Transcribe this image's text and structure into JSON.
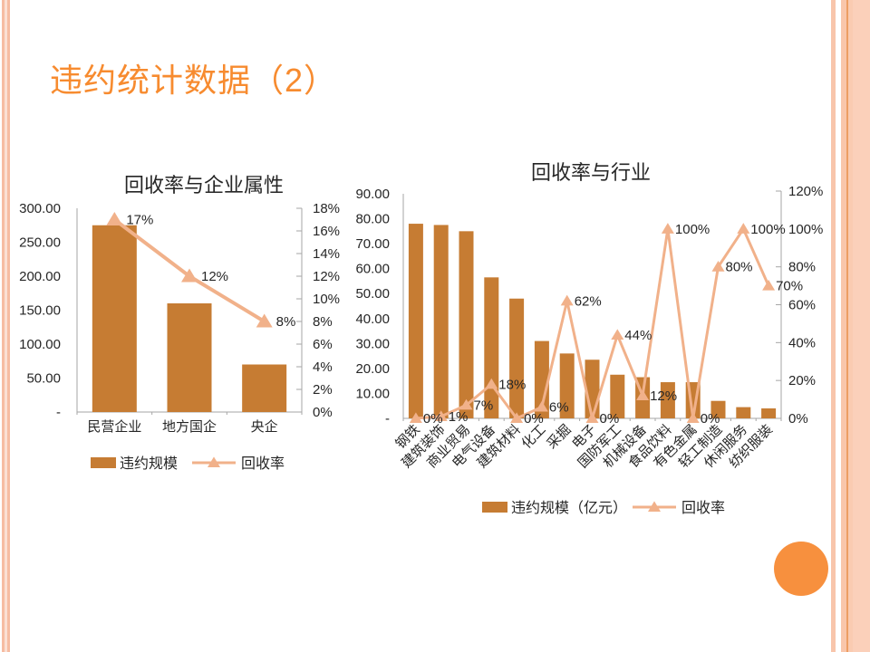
{
  "slide": {
    "title": "违约统计数据（2）",
    "colors": {
      "title_accent": "#F78B2F",
      "bar": "#C67C33",
      "line": "#F1B18A",
      "circle": "#F7903E",
      "border_stripe": "#F8C5AB",
      "border_stripe_dark": "#ED9E63",
      "axis": "#A6A6A6",
      "chart_text": "#262626"
    }
  },
  "chart_data": [
    {
      "type": "bar",
      "subtype": "combo-bar-line-dual-axis",
      "title": "回收率与企业属性",
      "categories": [
        "民营企业",
        "地方国企",
        "央企"
      ],
      "series": [
        {
          "name": "违约规模",
          "type": "bar",
          "axis": "left",
          "values": [
            275,
            160,
            70
          ],
          "color": "#C67C33"
        },
        {
          "name": "回收率",
          "type": "line",
          "axis": "right",
          "values": [
            17,
            12,
            8
          ],
          "labels": [
            "17%",
            "12%",
            "8%"
          ],
          "color": "#F1B18A"
        }
      ],
      "left_axis": {
        "max": 300,
        "min": 0,
        "step": 50,
        "tick_labels": [
          "300.00",
          "250.00",
          "200.00",
          "150.00",
          "100.00",
          "50.00",
          "-"
        ]
      },
      "right_axis": {
        "max": 18,
        "min": 0,
        "step": 2,
        "tick_labels": [
          "18%",
          "16%",
          "14%",
          "12%",
          "10%",
          "8%",
          "6%",
          "4%",
          "2%",
          "0%"
        ]
      },
      "legend": [
        "违约规模",
        "回收率"
      ],
      "legend_position": "bottom",
      "grid": false
    },
    {
      "type": "bar",
      "subtype": "combo-bar-line-dual-axis",
      "title": "回收率与行业",
      "categories": [
        "钢铁",
        "建筑装饰",
        "商业贸易",
        "电气设备",
        "建筑材料",
        "化工",
        "采掘",
        "电子",
        "国防军工",
        "机械设备",
        "食品饮料",
        "有色金属",
        "轻工制造",
        "休闲服务",
        "纺织服装"
      ],
      "series": [
        {
          "name": "违约规模（亿元）",
          "type": "bar",
          "axis": "left",
          "values": [
            78,
            77.5,
            75,
            56.5,
            48,
            31,
            26,
            23.5,
            17.5,
            16.5,
            14.5,
            14.5,
            7,
            4.5,
            4
          ],
          "color": "#C67C33"
        },
        {
          "name": "回收率",
          "type": "line",
          "axis": "right",
          "values": [
            0,
            1,
            7,
            18,
            0,
            6,
            62,
            0,
            44,
            12,
            100,
            0,
            80,
            100,
            70
          ],
          "labels": [
            "0%",
            "1%",
            "7%",
            "18%",
            "0%",
            "6%",
            "62%",
            "0%",
            "44%",
            "12%",
            "100%",
            "0%",
            "80%",
            "100%",
            "70%"
          ],
          "color": "#F1B18A"
        }
      ],
      "left_axis": {
        "max": 90,
        "min": 0,
        "step": 10,
        "tick_labels": [
          "90.00",
          "80.00",
          "70.00",
          "60.00",
          "50.00",
          "40.00",
          "30.00",
          "20.00",
          "10.00",
          "-"
        ]
      },
      "right_axis": {
        "max": 120,
        "min": 0,
        "step": 20,
        "tick_labels": [
          "120%",
          "100%",
          "80%",
          "60%",
          "40%",
          "20%",
          "0%"
        ]
      },
      "legend": [
        "违约规模（亿元）",
        "回收率"
      ],
      "legend_position": "bottom",
      "grid": false
    }
  ]
}
